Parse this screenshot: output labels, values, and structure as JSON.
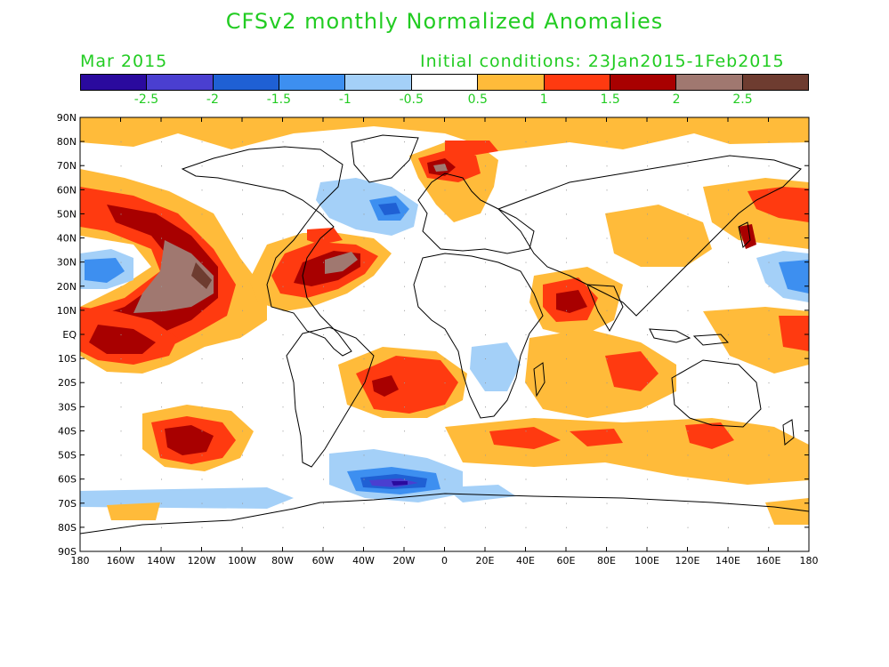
{
  "title": "CFSv2 monthly Normalized Anomalies",
  "month_label": "Mar 2015",
  "init_label": "Initial conditions: 23Jan2015-1Feb2015",
  "colorbar": {
    "colors": [
      "#2a0a9e",
      "#4a3fd0",
      "#1f60d4",
      "#3d8ff0",
      "#a4d0f8",
      "#ffffff",
      "#ffbb3a",
      "#ff3a10",
      "#a80000",
      "#a07870",
      "#6e3c30"
    ],
    "labels": [
      "-2.5",
      "-2",
      "-1.5",
      "-1",
      "-0.5",
      "0.5",
      "1",
      "1.5",
      "2",
      "2.5"
    ]
  },
  "axes": {
    "lat_labels": [
      "90N",
      "80N",
      "70N",
      "60N",
      "50N",
      "40N",
      "30N",
      "20N",
      "10N",
      "EQ",
      "10S",
      "20S",
      "30S",
      "40S",
      "50S",
      "60S",
      "70S",
      "80S",
      "90S"
    ],
    "lon_labels": [
      "180",
      "160W",
      "140W",
      "120W",
      "100W",
      "80W",
      "60W",
      "40W",
      "20W",
      "0",
      "20E",
      "40E",
      "60E",
      "80E",
      "100E",
      "120E",
      "140E",
      "160E",
      "180"
    ]
  }
}
